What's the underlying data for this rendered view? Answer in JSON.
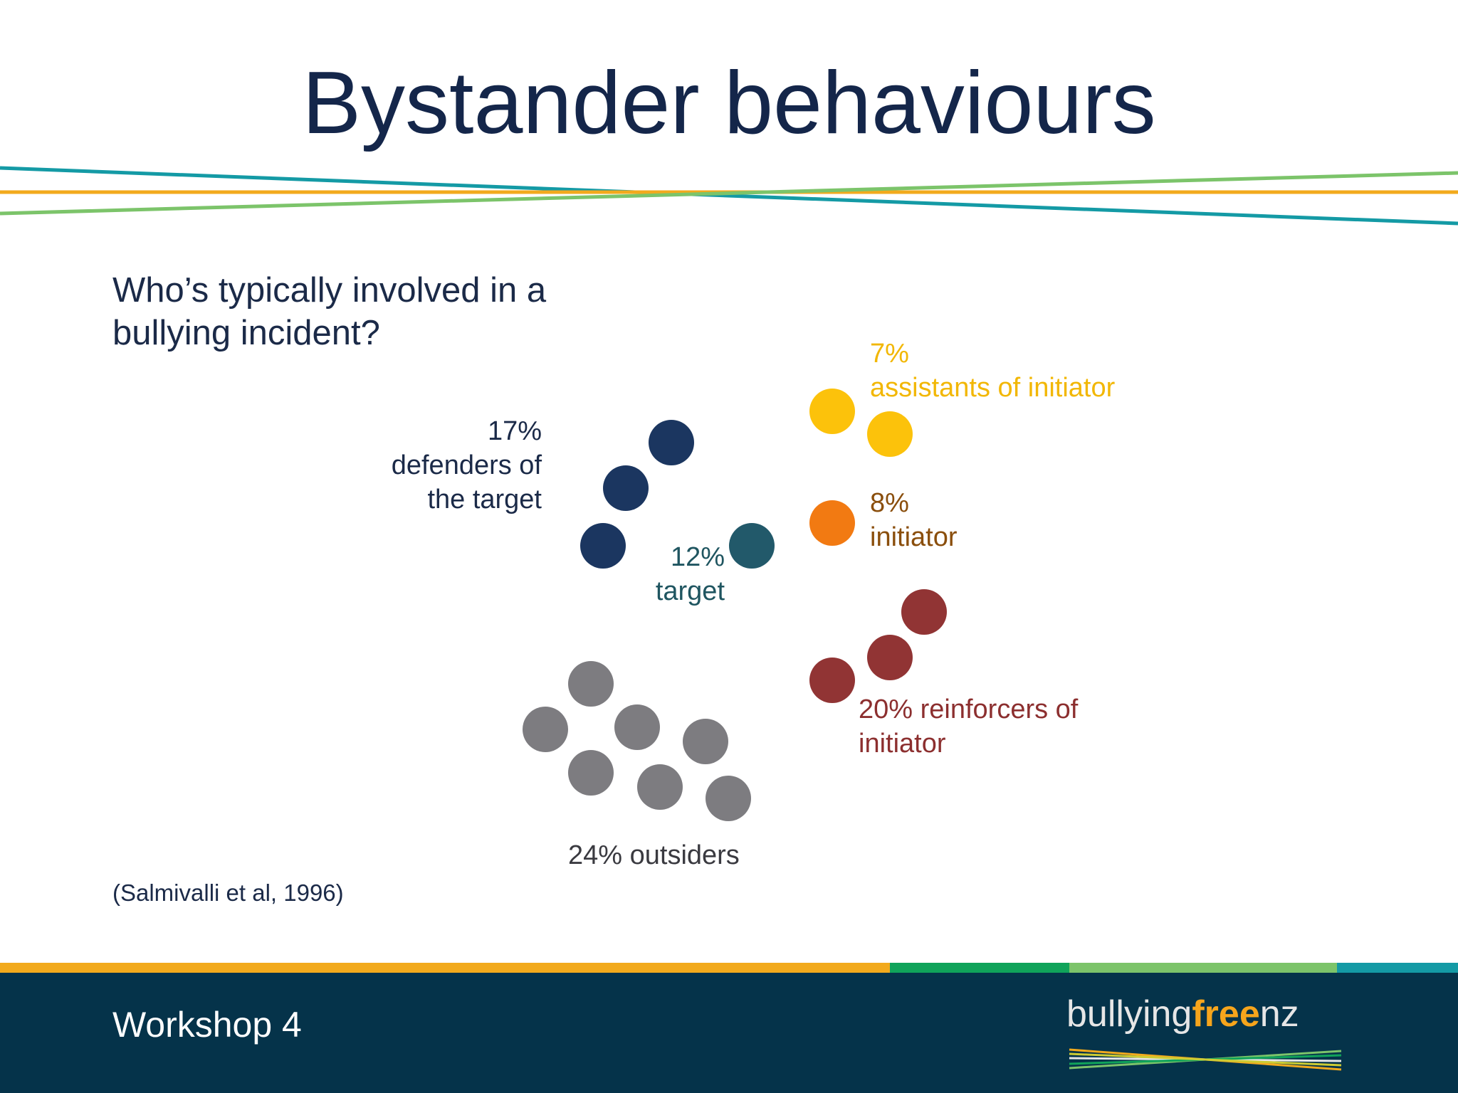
{
  "slide": {
    "title": "Bystander behaviours",
    "question_line1": "Who’s typically involved in a",
    "question_line2": "bullying incident?",
    "citation": "(Salmivalli et al, 1996)"
  },
  "groups": {
    "defenders": {
      "percent": "17%",
      "line1": "defenders of",
      "line2": "the target",
      "color": "#1b3660",
      "count": 3
    },
    "target": {
      "percent": "12%",
      "line1": "target",
      "color": "#22596a",
      "count": 1
    },
    "assistants": {
      "percent": "7%",
      "line1": "assistants of initiator",
      "color": "#fcc20b",
      "count": 2
    },
    "initiator": {
      "percent": "8%",
      "line1": "initiator",
      "color": "#f27a12",
      "count": 1
    },
    "reinforcers": {
      "line1": "20% reinforcers of",
      "line2": "initiator",
      "color": "#913434",
      "count": 3
    },
    "outsiders": {
      "line1": "24% outsiders",
      "color": "#7d7c80",
      "count": 7
    }
  },
  "footer": {
    "workshop": "Workshop 4",
    "logo_part1": "bullying",
    "logo_part2": "free",
    "logo_part3": "nz"
  },
  "colors": {
    "title": "#14264a",
    "footer_bg": "#05334a",
    "stripe_teal": "#149aa5",
    "stripe_orange": "#f2aa1d",
    "stripe_green": "#7cc46a"
  }
}
